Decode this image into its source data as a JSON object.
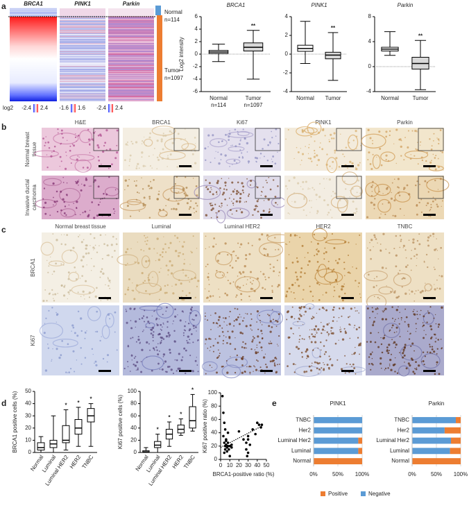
{
  "panel_labels": [
    "a",
    "b",
    "c",
    "d",
    "e"
  ],
  "heatmap": {
    "columns": [
      "BRCA1",
      "PINK1",
      "Parkin"
    ],
    "groups": [
      {
        "label": "Normal",
        "n": "n=114"
      },
      {
        "label": "Tumor",
        "n": "n=1097"
      }
    ],
    "scale_title": "log2",
    "scales": [
      [
        -2.4,
        2.4
      ],
      [
        -1.6,
        1.6
      ],
      [
        -2.4,
        2.4
      ]
    ]
  },
  "ihc_b": {
    "columns": [
      "H&E",
      "BRCA1",
      "Ki67",
      "PINK1",
      "Parkin"
    ],
    "rows": [
      [
        "Normal breast",
        "tissue"
      ],
      [
        "Invasive ductal",
        "carcinoma"
      ]
    ]
  },
  "ihc_c": {
    "columns": [
      "Normal breast tissue",
      "Luminal",
      "Luminal HER2",
      "HER2",
      "TNBC"
    ],
    "rows": [
      "BRCA1",
      "Ki67"
    ]
  },
  "chart_data": [
    {
      "type": "box",
      "title": "BRCA1",
      "ylabel": "Log2 intensity",
      "categories": [
        "Normal",
        "Tumor"
      ],
      "category_notes": [
        "n=114",
        "n=1097"
      ],
      "boxes": [
        {
          "min": -1.2,
          "q1": 0.1,
          "median": 0.35,
          "q3": 0.6,
          "max": 1.6,
          "color": "#ffffff"
        },
        {
          "min": -4,
          "q1": 0.5,
          "median": 1.1,
          "q3": 1.8,
          "max": 3.8,
          "color": "#d9d9d9",
          "annotation": "**"
        }
      ],
      "ylim": [
        -6,
        6
      ],
      "yticks": [
        -6,
        -4,
        -2,
        0,
        2,
        4,
        6
      ],
      "zero_line": true
    },
    {
      "type": "box",
      "title": "PINK1",
      "categories": [
        "Normal",
        "Tumor"
      ],
      "boxes": [
        {
          "min": -1,
          "q1": 0.3,
          "median": 0.6,
          "q3": 0.95,
          "max": 3.5,
          "color": "#ffffff"
        },
        {
          "min": -2.8,
          "q1": -0.5,
          "median": -0.1,
          "q3": 0.2,
          "max": 2.3,
          "color": "#d9d9d9",
          "annotation": "**"
        }
      ],
      "ylim": [
        -4,
        4
      ],
      "yticks": [
        -4,
        -2,
        0,
        2,
        4
      ],
      "zero_line": true
    },
    {
      "type": "box",
      "title": "Parkin",
      "categories": [
        "Normal",
        "Tumor"
      ],
      "boxes": [
        {
          "min": 1.8,
          "q1": 2.5,
          "median": 2.8,
          "q3": 3.1,
          "max": 5.6,
          "color": "#ffffff"
        },
        {
          "min": -3.7,
          "q1": -0.4,
          "median": 0.5,
          "q3": 1.5,
          "max": 4.2,
          "color": "#d9d9d9",
          "annotation": "**"
        }
      ],
      "ylim": [
        -4,
        8
      ],
      "yticks": [
        -4,
        0,
        4,
        8
      ],
      "zero_line": true
    },
    {
      "type": "box",
      "ylabel": "BRCA1 positive cells (%)",
      "categories": [
        "Normal",
        "Luminal",
        "Luminal HER2",
        "HER2",
        "TNBC"
      ],
      "boxes": [
        {
          "min": 0,
          "q1": 2,
          "median": 4,
          "q3": 8,
          "max": 13,
          "color": "#ffffff"
        },
        {
          "min": 0,
          "q1": 4,
          "median": 7,
          "q3": 10,
          "max": 30,
          "color": "#ffffff"
        },
        {
          "min": 2,
          "q1": 8,
          "median": 10,
          "q3": 22,
          "max": 35,
          "color": "#ffffff",
          "annotation": "*"
        },
        {
          "min": 5,
          "q1": 15,
          "median": 20,
          "q3": 27,
          "max": 37,
          "color": "#ffffff",
          "annotation": "*"
        },
        {
          "min": 5,
          "q1": 25,
          "median": 30,
          "q3": 36,
          "max": 40,
          "color": "#ffffff",
          "annotation": "*"
        }
      ],
      "ylim": [
        0,
        50
      ],
      "yticks": [
        0,
        10,
        20,
        30,
        40,
        50
      ]
    },
    {
      "type": "box",
      "ylabel": "Ki67 positive cells (%)",
      "categories": [
        "Normal",
        "Luminal",
        "Luminal HER2",
        "HER2",
        "TNBC"
      ],
      "boxes": [
        {
          "min": 0,
          "q1": 0,
          "median": 1,
          "q3": 3,
          "max": 8,
          "color": "#ffffff"
        },
        {
          "min": 0,
          "q1": 8,
          "median": 12,
          "q3": 18,
          "max": 30,
          "color": "#ffffff",
          "annotation": "*"
        },
        {
          "min": 10,
          "q1": 22,
          "median": 30,
          "q3": 38,
          "max": 50,
          "color": "#ffffff",
          "annotation": "*"
        },
        {
          "min": 28,
          "q1": 32,
          "median": 38,
          "q3": 45,
          "max": 55,
          "color": "#ffffff",
          "annotation": "*"
        },
        {
          "min": 35,
          "q1": 40,
          "median": 52,
          "q3": 75,
          "max": 95,
          "color": "#ffffff",
          "annotation": "*"
        }
      ],
      "ylim": [
        0,
        100
      ],
      "yticks": [
        0,
        20,
        40,
        60,
        80,
        100
      ]
    },
    {
      "type": "scatter",
      "xlabel": "BRCA1-positive ratio (%)",
      "ylabel": "Ki67 positive ratio (%)",
      "x": [
        2,
        3,
        4,
        4,
        5,
        5,
        6,
        6,
        7,
        7,
        8,
        8,
        9,
        10,
        10,
        12,
        3,
        5,
        4,
        6,
        8,
        20,
        25,
        28,
        28,
        30,
        30,
        32,
        35,
        38,
        40,
        42,
        44,
        45,
        29,
        30,
        12
      ],
      "y": [
        95,
        70,
        55,
        25,
        20,
        15,
        30,
        22,
        18,
        12,
        25,
        40,
        15,
        20,
        5,
        22,
        35,
        45,
        10,
        28,
        20,
        42,
        30,
        25,
        15,
        10,
        35,
        22,
        45,
        38,
        55,
        52,
        48,
        52,
        5,
        30,
        18
      ],
      "trendline": {
        "x": [
          0,
          45
        ],
        "y": [
          18,
          50
        ]
      },
      "xlim": [
        0,
        50
      ],
      "xticks": [
        0,
        10,
        20,
        30,
        40,
        50
      ],
      "ylim": [
        0,
        100
      ],
      "yticks": [
        0,
        20,
        40,
        60,
        80,
        100
      ],
      "color": "#000000"
    },
    {
      "type": "stacked_hbar",
      "title": "PINK1",
      "categories": [
        "TNBC",
        "Her2",
        "Luminal Her2",
        "Luminal",
        "Normal"
      ],
      "series": [
        {
          "name": "Positive",
          "color": "#ed7d31",
          "values": [
            0,
            0,
            8,
            8,
            100
          ]
        },
        {
          "name": "Negative",
          "color": "#5b9bd5",
          "values": [
            100,
            100,
            92,
            92,
            0
          ]
        }
      ],
      "xlim": [
        0,
        100
      ],
      "xticks": [
        {
          "value": 0,
          "label": "0%"
        },
        {
          "value": 50,
          "label": "50%"
        },
        {
          "value": 100,
          "label": "100%"
        }
      ],
      "grid": true,
      "legend": "bottom"
    },
    {
      "type": "stacked_hbar",
      "title": "Parkin",
      "categories": [
        "TNBC",
        "Her2",
        "Luminal Her2",
        "Luminal",
        "Normal"
      ],
      "series": [
        {
          "color": "#ed7d31",
          "values": [
            10,
            33,
            20,
            22,
            100
          ]
        },
        {
          "color": "#5b9bd5",
          "values": [
            90,
            67,
            80,
            78,
            0
          ]
        }
      ],
      "xlim": [
        0,
        100
      ],
      "xticks": [
        {
          "value": 0,
          "label": "0%"
        },
        {
          "value": 50,
          "label": "50%"
        },
        {
          "value": 100,
          "label": "100%"
        }
      ],
      "grid": true
    }
  ]
}
